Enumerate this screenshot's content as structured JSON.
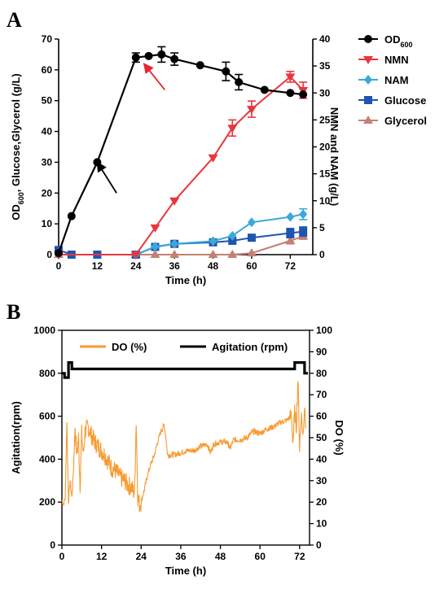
{
  "colors": {
    "OD600": "#000000",
    "NMN": "#e8363e",
    "NAM": "#3aa8d8",
    "Glucose": "#1f55b0",
    "Glycerol": "#c48072",
    "DO": "#f79a2f",
    "Agitation": "#000000"
  },
  "chart_data": [
    {
      "panel": "A",
      "type": "line",
      "xlabel": "Time (h)",
      "ylabel_left_main": "OD",
      "ylabel_left_sub": "600",
      "ylabel_left_rest": ", Glucose,Glycerol (g/L)",
      "ylabel_right": "NMN and NAM (g/L)",
      "xlim": [
        0,
        79
      ],
      "ylim_left": [
        0,
        70
      ],
      "ylim_right": [
        0,
        40
      ],
      "x_ticks": [
        0,
        12,
        24,
        36,
        48,
        60,
        72
      ],
      "y_left_ticks": [
        0,
        10,
        20,
        30,
        40,
        50,
        60,
        70
      ],
      "y_right_ticks": [
        0,
        5,
        10,
        15,
        20,
        25,
        30,
        35,
        40
      ],
      "legend_position": "right, outside",
      "series": [
        {
          "name": "OD",
          "name_sub": "600",
          "key": "OD600",
          "axis": "left",
          "marker": "circle",
          "x": [
            0,
            4,
            12,
            24,
            28,
            32,
            36,
            44,
            52,
            56,
            64,
            72,
            76
          ],
          "y": [
            0.5,
            12.5,
            30,
            64,
            64.5,
            65,
            63.5,
            61.5,
            59.5,
            56,
            53.5,
            52.5,
            52
          ],
          "err": [
            0,
            0,
            0,
            1.5,
            0,
            2.5,
            2,
            0,
            3,
            2.5,
            0,
            0,
            0
          ]
        },
        {
          "name": "NMN",
          "key": "NMN",
          "axis": "right",
          "marker": "triangle-down",
          "x": [
            0,
            24,
            30,
            36,
            48,
            54,
            60,
            72,
            76
          ],
          "y": [
            0,
            0,
            5,
            10,
            18,
            23.5,
            27,
            33,
            30.5
          ],
          "err": [
            0,
            0,
            0,
            0,
            0,
            1.5,
            1.5,
            1,
            1.5
          ]
        },
        {
          "name": "NAM",
          "key": "NAM",
          "axis": "right",
          "marker": "diamond",
          "x": [
            0,
            24,
            30,
            36,
            48,
            54,
            60,
            72,
            76
          ],
          "y": [
            0,
            0,
            1.5,
            2,
            2.5,
            3.5,
            6,
            7,
            7.5
          ],
          "err": [
            0,
            0,
            0,
            0,
            0,
            0,
            0,
            0,
            1
          ]
        },
        {
          "name": "Glucose",
          "key": "Glucose",
          "axis": "left",
          "marker": "square",
          "x": [
            0,
            4,
            12,
            24,
            30,
            36,
            48,
            54,
            60,
            72,
            76
          ],
          "y": [
            1.5,
            0,
            0,
            0,
            2.5,
            3.5,
            4,
            4.5,
            5.5,
            7,
            7.5
          ],
          "err": [
            0,
            0,
            0,
            0,
            0,
            0,
            0,
            0,
            0,
            1.5,
            1.5
          ]
        },
        {
          "name": "Glycerol",
          "key": "Glycerol",
          "axis": "left",
          "marker": "triangle-up",
          "x": [
            0,
            24,
            30,
            36,
            48,
            54,
            60,
            72,
            76
          ],
          "y": [
            0,
            0,
            0,
            0,
            0,
            0,
            0.5,
            4.5,
            6
          ],
          "err": [
            0,
            0,
            0,
            0,
            0,
            0,
            0,
            1,
            1
          ]
        }
      ],
      "annotations": [
        {
          "type": "arrow",
          "color": "black",
          "from": [
            18,
            20
          ],
          "to": [
            12,
            30
          ]
        },
        {
          "type": "arrow",
          "color": "red",
          "from": [
            33,
            53.5
          ],
          "to": [
            26.5,
            62
          ]
        }
      ]
    },
    {
      "panel": "B",
      "type": "line",
      "xlabel": "Time (h)",
      "ylabel_left": "Agitation(rpm)",
      "ylabel_right": "DO (%)",
      "xlim": [
        0,
        75
      ],
      "ylim_left": [
        0,
        1000
      ],
      "ylim_right": [
        0,
        100
      ],
      "x_ticks": [
        0,
        12,
        24,
        36,
        48,
        60,
        72
      ],
      "y_left_ticks": [
        0,
        200,
        400,
        600,
        800,
        1000
      ],
      "y_right_ticks": [
        0,
        10,
        20,
        30,
        40,
        50,
        60,
        70,
        80,
        90,
        100
      ],
      "legend_position": "top, inside",
      "series": [
        {
          "name": "DO (%)",
          "key": "DO",
          "axis": "right",
          "x": [
            0,
            0.5,
            1,
            1.5,
            2,
            2.5,
            3,
            3.5,
            4,
            4.5,
            5,
            5.5,
            6,
            6.5,
            7,
            8,
            9,
            10,
            11,
            12,
            13,
            14,
            15,
            16,
            17,
            18,
            19,
            20,
            21,
            22,
            22.5,
            23,
            23.5,
            24,
            25,
            26,
            27,
            28,
            29,
            30,
            31,
            31.5,
            32,
            34,
            36,
            38,
            40,
            42,
            44,
            45,
            46,
            48,
            50,
            51,
            52,
            54,
            56,
            58,
            60,
            62,
            64,
            66,
            68,
            69.5,
            70,
            70.5,
            71,
            71.5,
            72,
            72.5,
            73,
            73.5,
            74
          ],
          "y": [
            21,
            19,
            22,
            58,
            20,
            30,
            22,
            35,
            55,
            42,
            50,
            28,
            52,
            42,
            53,
            55,
            51,
            48,
            46,
            44,
            42,
            39,
            36,
            35,
            33,
            31,
            30,
            28,
            27,
            24,
            58,
            22,
            19,
            20,
            26,
            33,
            38,
            42,
            48,
            53,
            56,
            50,
            42,
            42,
            43,
            44,
            44,
            46,
            47,
            43,
            47,
            48,
            48,
            45,
            49,
            49,
            50,
            53,
            52,
            54,
            55,
            57,
            58,
            60,
            48,
            62,
            55,
            78,
            45,
            62,
            50,
            65,
            55
          ]
        },
        {
          "name": "Agitation (rpm)",
          "key": "Agitation",
          "axis": "left",
          "x": [
            0,
            0.8,
            0.8,
            2,
            2,
            3,
            3,
            4,
            4,
            70.5,
            70.5,
            73.5,
            73.5,
            74.5
          ],
          "y": [
            800,
            800,
            780,
            780,
            850,
            850,
            820,
            820,
            820,
            820,
            850,
            850,
            800,
            800
          ]
        }
      ]
    }
  ]
}
